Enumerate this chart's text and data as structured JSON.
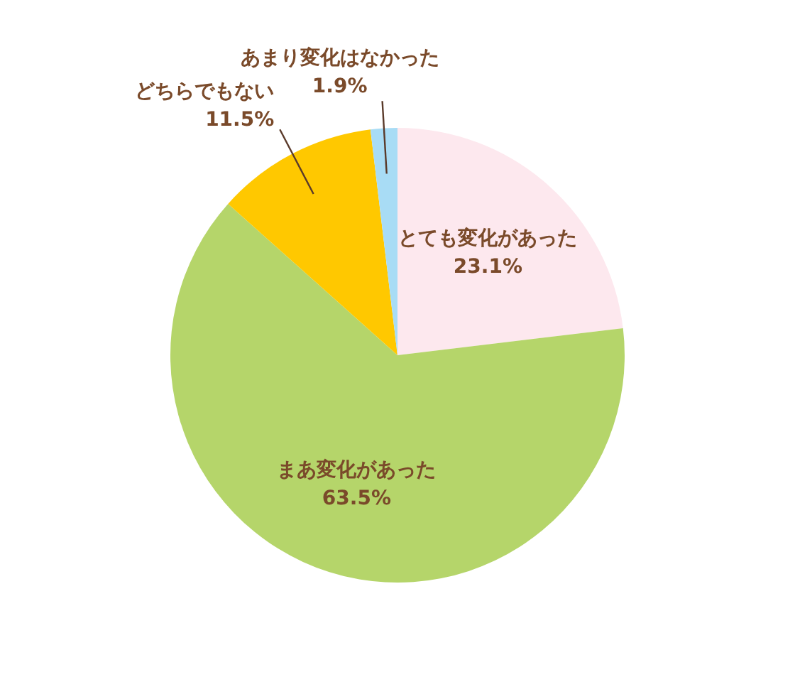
{
  "chart_data": {
    "type": "pie",
    "categories": [
      "とても変化があった",
      "まあ変化があった",
      "どちらでもない",
      "あまり変化はなかった"
    ],
    "values": [
      23.1,
      63.5,
      11.5,
      1.9
    ],
    "value_labels": [
      "23.1%",
      "63.5%",
      "11.5%",
      "1.9%"
    ],
    "colors": [
      "#fde8ee",
      "#b5d56a",
      "#ffc800",
      "#a8dcf5"
    ],
    "legend": false
  }
}
